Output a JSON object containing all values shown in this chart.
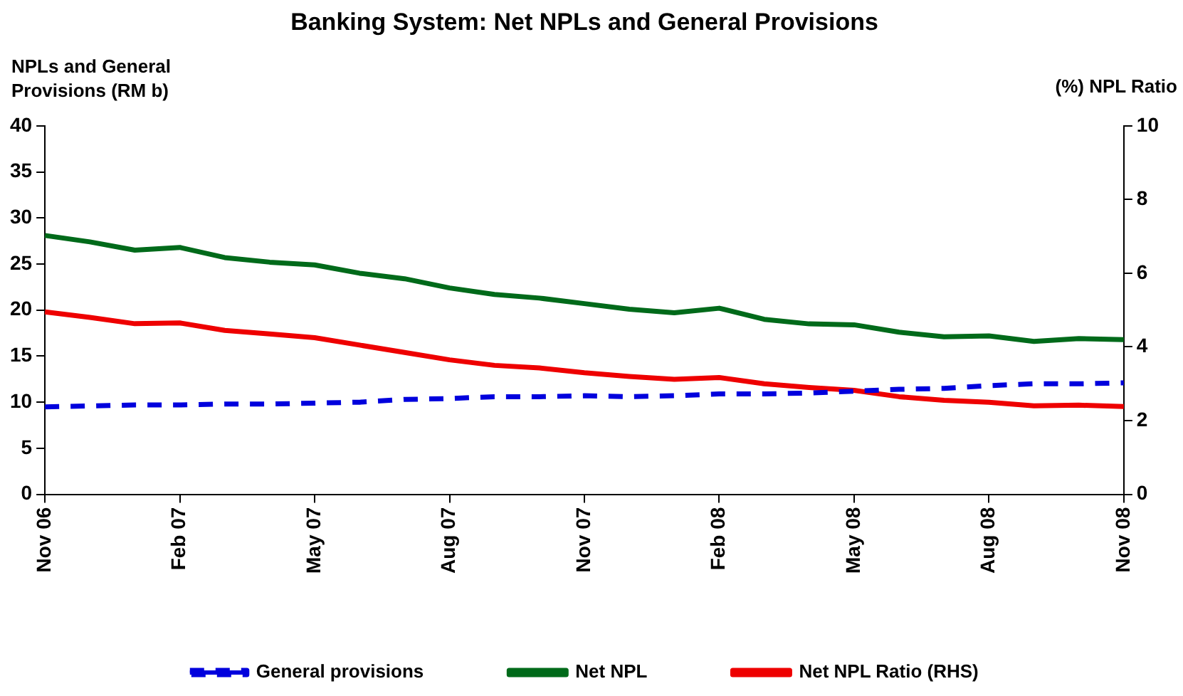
{
  "chart_data": {
    "type": "line",
    "title": "Banking System: Net NPLs and General Provisions",
    "ylabel": "NPLs and General Provisions (RM b)",
    "y2label": "(%) NPL Ratio",
    "categories": [
      "Nov 06",
      null,
      null,
      "Feb 07",
      null,
      null,
      "May 07",
      null,
      null,
      "Aug 07",
      null,
      null,
      "Nov 07",
      null,
      null,
      "Feb 08",
      null,
      null,
      "May 08",
      null,
      null,
      "Aug 08",
      null,
      null,
      "Nov 08"
    ],
    "series": [
      {
        "name": "General provisions",
        "color": "#0000dd",
        "line_style": "dashed",
        "values": [
          9.5,
          9.6,
          9.7,
          9.7,
          9.8,
          9.8,
          9.9,
          10.0,
          10.3,
          10.4,
          10.6,
          10.6,
          10.7,
          10.6,
          10.7,
          10.9,
          10.9,
          11.0,
          11.2,
          11.4,
          11.5,
          11.8,
          12.0,
          12.0,
          12.1
        ]
      },
      {
        "name": "Net NPL",
        "color": "#006a1a",
        "values": [
          28.1,
          27.4,
          26.5,
          26.8,
          25.7,
          25.2,
          24.9,
          24.0,
          23.4,
          22.4,
          21.7,
          21.3,
          20.7,
          20.1,
          19.7,
          20.2,
          19.0,
          18.5,
          18.4,
          17.6,
          17.1,
          17.2,
          16.6,
          16.9,
          16.8
        ]
      },
      {
        "name": "Net NPL Ratio (RHS)",
        "color": "#ee0000",
        "axis": "y2",
        "values": [
          4.95,
          4.8,
          4.63,
          4.65,
          4.45,
          4.35,
          4.25,
          4.05,
          3.85,
          3.65,
          3.5,
          3.43,
          3.3,
          3.2,
          3.12,
          3.17,
          3.0,
          2.9,
          2.82,
          2.65,
          2.55,
          2.5,
          2.4,
          2.42,
          2.38
        ]
      }
    ],
    "ylim": [
      0,
      40
    ],
    "yticks": [
      0,
      5,
      10,
      15,
      20,
      25,
      30,
      35,
      40
    ],
    "y2lim": [
      0,
      10
    ],
    "y2ticks": [
      0,
      2,
      4,
      6,
      8,
      10
    ],
    "grid": false,
    "legend": "bottom",
    "marker": "none",
    "line_style": "solid"
  }
}
